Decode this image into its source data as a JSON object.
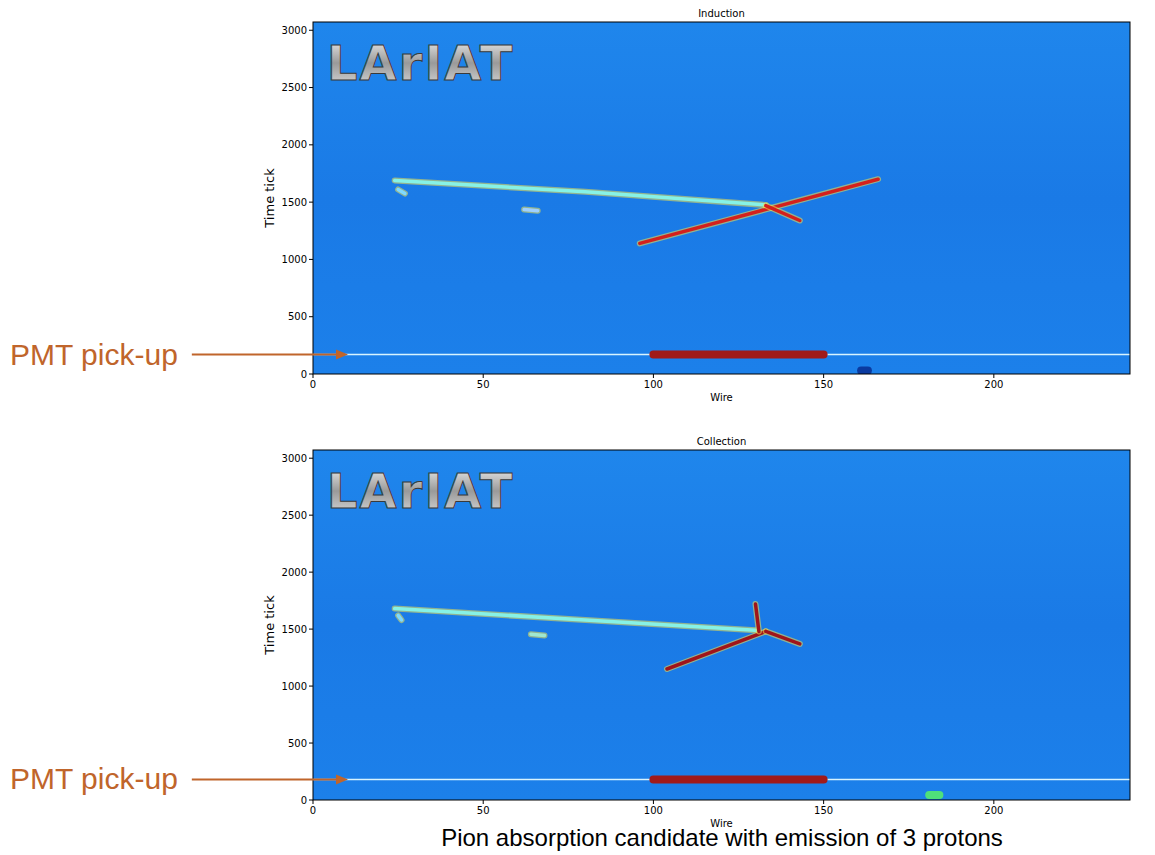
{
  "chart_data": [
    {
      "type": "line",
      "title": "Induction",
      "logo": "LArIAT",
      "x_label": "Wire",
      "y_label": "Time tick",
      "xlim": [
        0,
        240
      ],
      "ylim": [
        0,
        3072
      ],
      "xticks": [
        0,
        50,
        100,
        150,
        200
      ],
      "yticks": [
        0,
        500,
        1000,
        1500,
        2000,
        2500,
        3000
      ],
      "annotations": [
        {
          "text": "PMT pick-up",
          "y": 170
        }
      ],
      "series": [
        {
          "color": "#86f2e6",
          "line_style": "solid",
          "x": [
            24,
            80,
            133
          ],
          "values": [
            1690,
            1590,
            1475
          ]
        },
        {
          "color": "#d4201c",
          "line_style": "solid",
          "x": [
            96,
            131,
            166
          ],
          "values": [
            1140,
            1420,
            1700
          ]
        },
        {
          "color": "#d4201c",
          "line_style": "solid",
          "x": [
            133,
            143
          ],
          "values": [
            1470,
            1340
          ]
        },
        {
          "color": "#7fd9ff",
          "line_style": "solid",
          "x": [
            25,
            27
          ],
          "values": [
            1610,
            1575
          ]
        },
        {
          "color": "#9fd0ff",
          "line_style": "solid",
          "x": [
            62,
            66
          ],
          "values": [
            1435,
            1425
          ]
        },
        {
          "color": "#d8f4ff",
          "line_style": "thin",
          "x": [
            0,
            240
          ],
          "values": [
            170,
            170
          ]
        },
        {
          "color": "#a01a1a",
          "line_style": "thick",
          "x": [
            100,
            150
          ],
          "values": [
            170,
            170
          ]
        },
        {
          "color": "#0a3aa0",
          "line_style": "thick",
          "x": [
            161,
            163
          ],
          "values": [
            30,
            30
          ]
        }
      ]
    },
    {
      "type": "line",
      "title": "Collection",
      "logo": "LArIAT",
      "x_label": "Wire",
      "y_label": "Time tick",
      "xlim": [
        0,
        240
      ],
      "ylim": [
        0,
        3072
      ],
      "xticks": [
        0,
        50,
        100,
        150,
        200
      ],
      "yticks": [
        0,
        500,
        1000,
        1500,
        2000,
        2500,
        3000
      ],
      "annotations": [
        {
          "text": "PMT pick-up",
          "y": 180
        }
      ],
      "series": [
        {
          "color": "#86f2e6",
          "line_style": "solid",
          "x": [
            24,
            80,
            130
          ],
          "values": [
            1680,
            1580,
            1490
          ]
        },
        {
          "color": "#a0141a",
          "line_style": "solid",
          "x": [
            104,
            133
          ],
          "values": [
            1150,
            1480
          ]
        },
        {
          "color": "#a0141a",
          "line_style": "solid",
          "x": [
            133,
            143
          ],
          "values": [
            1480,
            1370
          ]
        },
        {
          "color": "#a0141a",
          "line_style": "solid",
          "x": [
            131,
            130
          ],
          "values": [
            1480,
            1720
          ]
        },
        {
          "color": "#7fd9ff",
          "line_style": "solid",
          "x": [
            25,
            26
          ],
          "values": [
            1620,
            1580
          ]
        },
        {
          "color": "#9fe8d0",
          "line_style": "solid",
          "x": [
            64,
            68
          ],
          "values": [
            1455,
            1445
          ]
        },
        {
          "color": "#d8f4ff",
          "line_style": "thin",
          "x": [
            0,
            240
          ],
          "values": [
            180,
            180
          ]
        },
        {
          "color": "#a01a1a",
          "line_style": "thick",
          "x": [
            100,
            150
          ],
          "values": [
            180,
            180
          ]
        },
        {
          "color": "#4fe07a",
          "line_style": "thick",
          "x": [
            181,
            184
          ],
          "values": [
            45,
            45
          ]
        }
      ]
    }
  ],
  "caption": "Pion absorption candidate with emission of 3 protons"
}
